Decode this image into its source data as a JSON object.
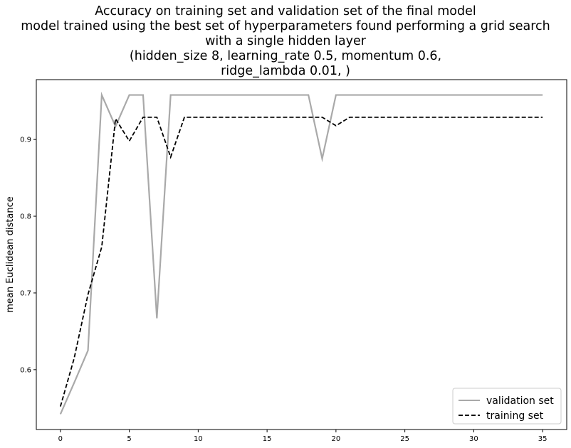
{
  "chart_data": {
    "type": "line",
    "title_lines": [
      "Accuracy on training set and validation set of the final model",
      "model trained using the best set of hyperparameters found performing a grid search",
      "with a single hidden layer",
      "(hidden_size 8, learning_rate 0.5, momentum 0.6,",
      "ridge_lambda 0.01, )"
    ],
    "xlabel": "",
    "ylabel": "mean Euclidean distance",
    "xlim": [
      -1.75,
      36.75
    ],
    "ylim": [
      0.522,
      0.978
    ],
    "xticks": [
      0,
      5,
      10,
      15,
      20,
      25,
      30,
      35
    ],
    "yticks": [
      0.6,
      0.7,
      0.8,
      0.9
    ],
    "grid": false,
    "legend_position": "lower-right",
    "x": [
      0,
      1,
      2,
      3,
      4,
      5,
      6,
      7,
      8,
      9,
      10,
      11,
      12,
      13,
      14,
      15,
      16,
      17,
      18,
      19,
      20,
      21,
      22,
      23,
      24,
      25,
      26,
      27,
      28,
      29,
      30,
      31,
      32,
      33,
      34,
      35
    ],
    "series": [
      {
        "name": "validation set",
        "color": "#a9a9a9",
        "style": "solid",
        "values": [
          0.542,
          0.583,
          0.625,
          0.958,
          0.917,
          0.958,
          0.958,
          0.667,
          0.958,
          0.958,
          0.958,
          0.958,
          0.958,
          0.958,
          0.958,
          0.958,
          0.958,
          0.958,
          0.958,
          0.875,
          0.958,
          0.958,
          0.958,
          0.958,
          0.958,
          0.958,
          0.958,
          0.958,
          0.958,
          0.958,
          0.958,
          0.958,
          0.958,
          0.958,
          0.958,
          0.958
        ]
      },
      {
        "name": "training set",
        "color": "#000000",
        "style": "dashed",
        "values": [
          0.552,
          0.615,
          0.698,
          0.76,
          0.927,
          0.898,
          0.929,
          0.929,
          0.877,
          0.929,
          0.929,
          0.929,
          0.929,
          0.929,
          0.929,
          0.929,
          0.929,
          0.929,
          0.929,
          0.929,
          0.918,
          0.929,
          0.929,
          0.929,
          0.929,
          0.929,
          0.929,
          0.929,
          0.929,
          0.929,
          0.929,
          0.929,
          0.929,
          0.929,
          0.929,
          0.929
        ]
      }
    ]
  }
}
